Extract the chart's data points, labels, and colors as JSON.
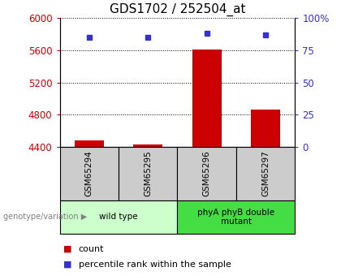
{
  "title": "GDS1702 / 252504_at",
  "samples": [
    "GSM65294",
    "GSM65295",
    "GSM65296",
    "GSM65297"
  ],
  "counts": [
    4480,
    4435,
    5610,
    4870
  ],
  "percentiles": [
    85,
    85,
    88,
    87
  ],
  "ylim_left": [
    4400,
    6000
  ],
  "ylim_right": [
    0,
    100
  ],
  "yticks_left": [
    4400,
    4800,
    5200,
    5600,
    6000
  ],
  "yticks_right": [
    0,
    25,
    50,
    75,
    100
  ],
  "ytick_labels_right": [
    "0",
    "25",
    "50",
    "75",
    "100%"
  ],
  "bar_color": "#cc0000",
  "marker_color": "#3333cc",
  "bar_width": 0.5,
  "groups": [
    {
      "label": "wild type",
      "samples": [
        0,
        1
      ],
      "color": "#ccffcc"
    },
    {
      "label": "phyA phyB double\nmutant",
      "samples": [
        2,
        3
      ],
      "color": "#44dd44"
    }
  ],
  "legend_count_label": "count",
  "legend_percentile_label": "percentile rank within the sample",
  "genotype_label": "genotype/variation",
  "title_fontsize": 11,
  "axis_label_color_left": "#cc0000",
  "axis_label_color_right": "#3333cc",
  "background_color": "#ffffff",
  "cell_bg_color": "#cccccc"
}
